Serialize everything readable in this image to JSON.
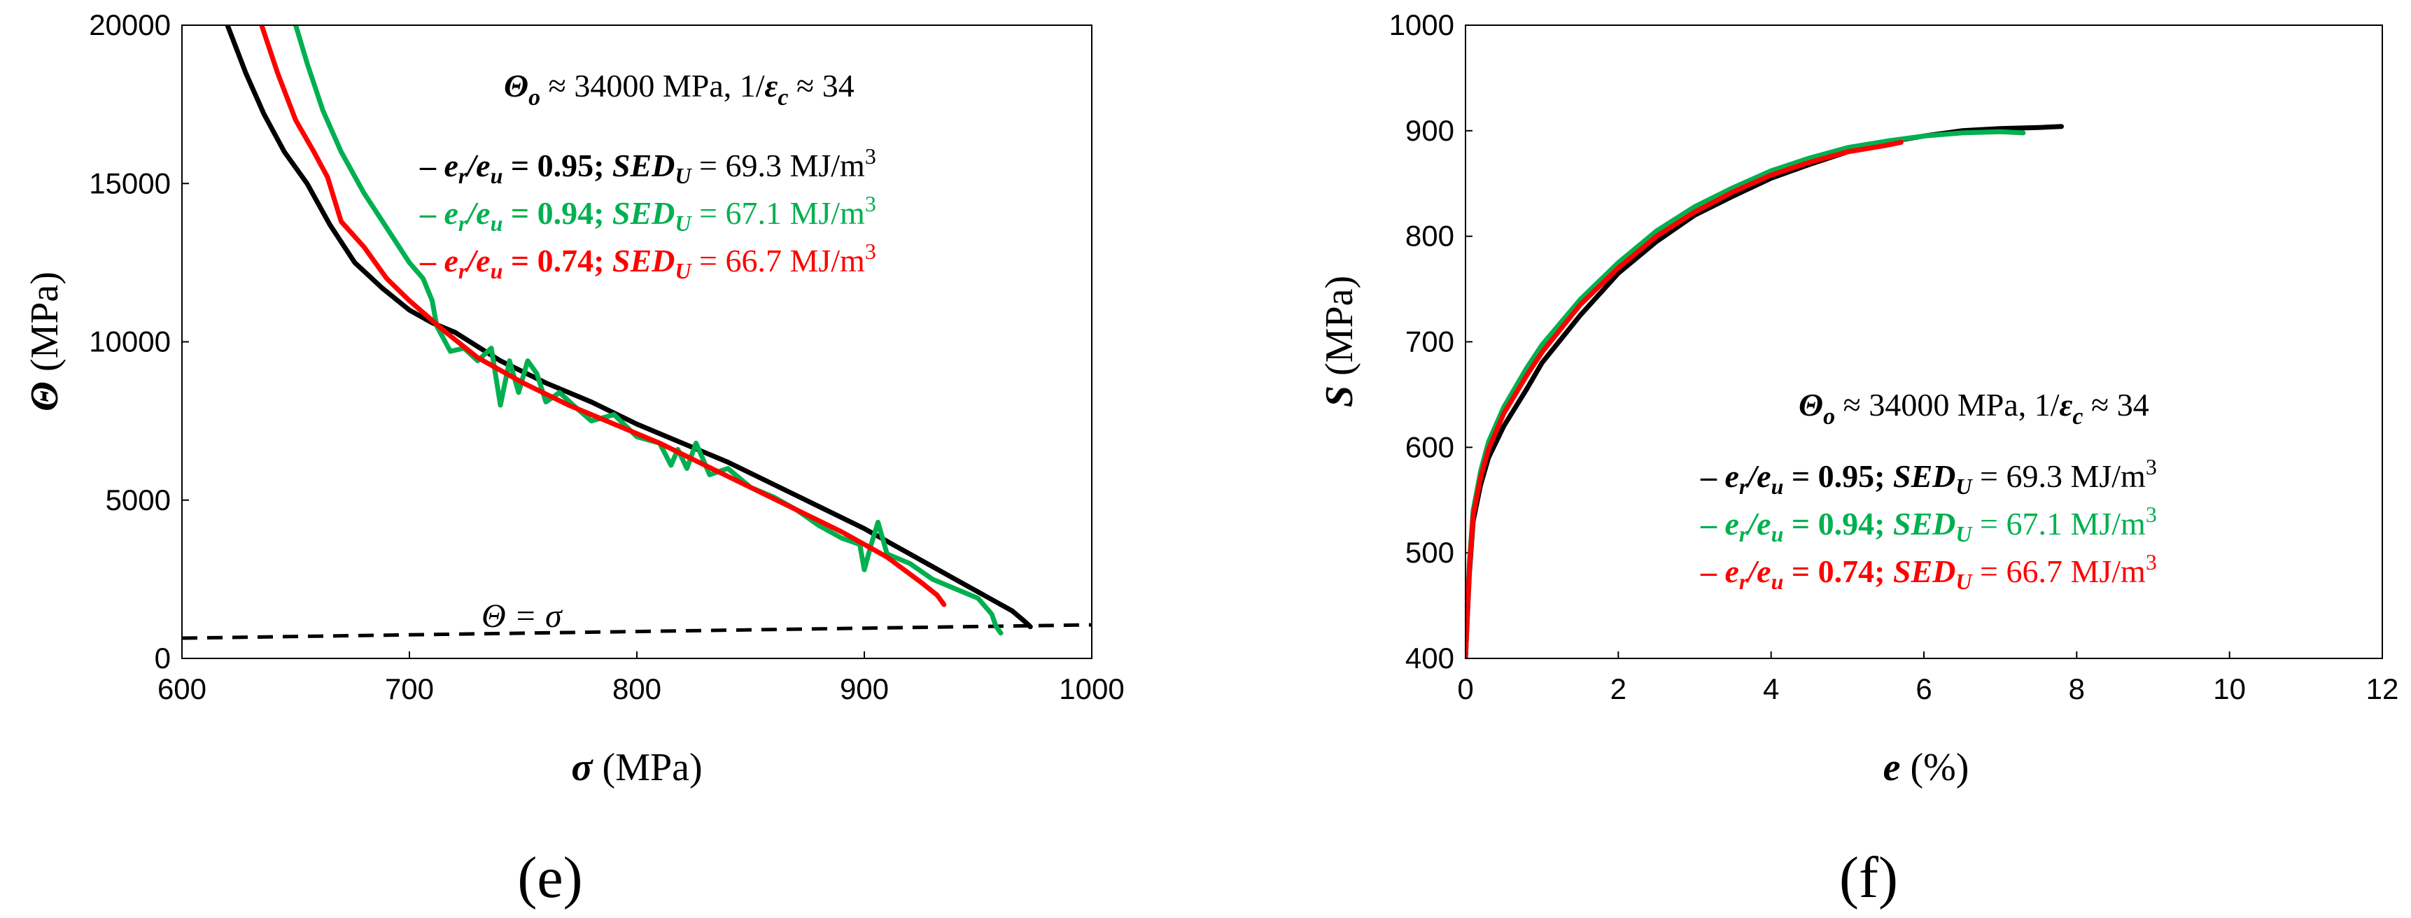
{
  "chart_data": [
    {
      "type": "line",
      "panel_label": "(e)",
      "x_label_sym": "σ",
      "x_label_unit": " (MPa)",
      "y_label_sym": "Θ",
      "y_label_unit": " (MPa)",
      "xlim": [
        600,
        1000
      ],
      "ylim": [
        0,
        20000
      ],
      "xticks": [
        600,
        700,
        800,
        900,
        1000
      ],
      "yticks": [
        0,
        5000,
        10000,
        15000,
        20000
      ],
      "header": {
        "theta_sym": "Θ",
        "theta_sub": "o",
        "theta_val": " ≈ 34000 MPa,  1/",
        "eps_sym": "ε",
        "eps_sub": "c",
        "eps_val": " ≈ 34"
      },
      "reference_line": {
        "label": "Θ =  σ",
        "x": [
          600,
          1000
        ],
        "y": [
          640,
          1060
        ]
      },
      "series": [
        {
          "name": "e_r/e_u = 0.95",
          "color": "#000000",
          "ratio": "0.95",
          "sed": "69.3",
          "x": [
            620,
            628,
            636,
            645,
            655,
            665,
            676,
            688,
            700,
            710,
            720,
            740,
            760,
            780,
            800,
            820,
            840,
            860,
            880,
            900,
            920,
            940,
            955,
            965,
            970,
            973
          ],
          "y": [
            20000,
            18500,
            17200,
            16000,
            15000,
            13700,
            12500,
            11700,
            11000,
            10600,
            10300,
            9400,
            8700,
            8100,
            7400,
            6800,
            6200,
            5500,
            4800,
            4100,
            3300,
            2500,
            1900,
            1500,
            1200,
            1000
          ]
        },
        {
          "name": "e_r/e_u = 0.94",
          "color": "#00b050",
          "ratio": "0.94",
          "sed": "67.1",
          "x": [
            650,
            655,
            662,
            670,
            680,
            690,
            700,
            706,
            710,
            712,
            718,
            724,
            730,
            736,
            740,
            744,
            748,
            752,
            756,
            760,
            766,
            772,
            780,
            790,
            800,
            810,
            815,
            818,
            822,
            826,
            832,
            840,
            850,
            860,
            870,
            880,
            890,
            898,
            900,
            903,
            906,
            910,
            920,
            930,
            940,
            950,
            956,
            958,
            960
          ],
          "y": [
            20000,
            18800,
            17300,
            16000,
            14700,
            13600,
            12500,
            12000,
            11300,
            10500,
            9700,
            9800,
            9400,
            9800,
            8000,
            9400,
            8400,
            9400,
            9000,
            8100,
            8400,
            8000,
            7500,
            7700,
            7000,
            6800,
            6100,
            6600,
            6000,
            6800,
            5800,
            6000,
            5400,
            5100,
            4700,
            4200,
            3800,
            3600,
            2800,
            3600,
            4300,
            3300,
            3000,
            2500,
            2200,
            1900,
            1400,
            1000,
            800
          ]
        },
        {
          "name": "e_r/e_u = 0.74",
          "color": "#ff0000",
          "ratio": "0.74",
          "sed": "66.7",
          "x": [
            635,
            642,
            650,
            658,
            664,
            670,
            680,
            690,
            700,
            708,
            716,
            730,
            750,
            770,
            790,
            810,
            830,
            850,
            870,
            890,
            910,
            925,
            932,
            935
          ],
          "y": [
            20000,
            18500,
            17000,
            16000,
            15200,
            13800,
            13000,
            12000,
            11300,
            10800,
            10300,
            9500,
            8700,
            8000,
            7400,
            6800,
            6100,
            5400,
            4700,
            4000,
            3200,
            2400,
            2000,
            1700
          ]
        }
      ]
    },
    {
      "type": "line",
      "panel_label": "(f)",
      "x_label_sym": "e",
      "x_label_unit": "  (%)",
      "y_label_sym": "S",
      "y_label_unit": "  (MPa)",
      "xlim": [
        0,
        12
      ],
      "ylim": [
        400,
        1000
      ],
      "xticks": [
        0,
        2,
        4,
        6,
        8,
        10,
        12
      ],
      "yticks": [
        400,
        500,
        600,
        700,
        800,
        900,
        1000
      ],
      "header": {
        "theta_sym": "Θ",
        "theta_sub": "o",
        "theta_val": " ≈ 34000 MPa,  1/",
        "eps_sym": "ε",
        "eps_sub": "c",
        "eps_val": " ≈ 34"
      },
      "series": [
        {
          "name": "e_r/e_u = 0.95",
          "color": "#000000",
          "ratio": "0.95",
          "sed": "69.3",
          "x": [
            0,
            0.05,
            0.1,
            0.2,
            0.3,
            0.5,
            0.8,
            1,
            1.5,
            2,
            2.5,
            3,
            3.5,
            4,
            4.5,
            5,
            5.5,
            6,
            6.5,
            7,
            7.5,
            7.8
          ],
          "y": [
            400,
            480,
            530,
            565,
            590,
            620,
            655,
            680,
            725,
            765,
            795,
            820,
            838,
            855,
            868,
            880,
            889,
            895,
            900,
            902,
            903,
            904
          ]
        },
        {
          "name": "e_r/e_u = 0.94",
          "color": "#00b050",
          "ratio": "0.94",
          "sed": "67.1",
          "x": [
            0,
            0.05,
            0.1,
            0.2,
            0.3,
            0.5,
            0.8,
            1,
            1.5,
            2,
            2.5,
            3,
            3.5,
            4,
            4.5,
            5,
            5.5,
            6,
            6.5,
            7,
            7.3
          ],
          "y": [
            400,
            490,
            540,
            578,
            605,
            638,
            675,
            697,
            740,
            775,
            805,
            828,
            846,
            862,
            874,
            884,
            890,
            895,
            898,
            899,
            898
          ]
        },
        {
          "name": "e_r/e_u = 0.74",
          "color": "#ff0000",
          "ratio": "0.74",
          "sed": "66.7",
          "x": [
            0,
            0.05,
            0.1,
            0.2,
            0.3,
            0.5,
            0.8,
            1,
            1.5,
            2,
            2.5,
            3,
            3.5,
            4,
            4.5,
            5,
            5.5,
            5.7
          ],
          "y": [
            400,
            485,
            535,
            572,
            598,
            632,
            668,
            690,
            735,
            770,
            800,
            823,
            842,
            858,
            870,
            880,
            886,
            889
          ]
        }
      ]
    }
  ]
}
